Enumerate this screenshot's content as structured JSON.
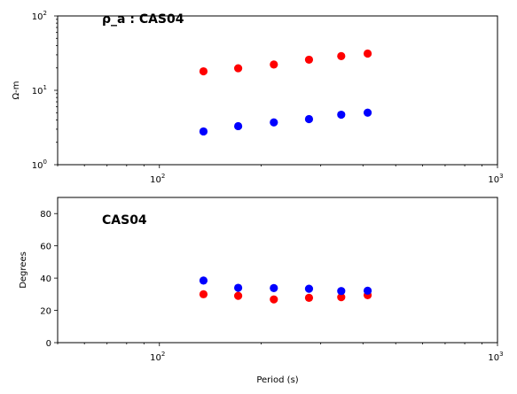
{
  "chart_data": [
    {
      "type": "scatter",
      "title": "ρ_a : CAS04",
      "xlabel": "",
      "ylabel": "Ω-m",
      "xscale": "log",
      "yscale": "log",
      "xlim": [
        50,
        1000
      ],
      "ylim": [
        1,
        100
      ],
      "x_ticks": [
        {
          "value": 100,
          "base": "10",
          "exp": "2"
        },
        {
          "value": 1000,
          "base": "10",
          "exp": "3"
        }
      ],
      "y_ticks": [
        {
          "value": 1,
          "base": "10",
          "exp": "0"
        },
        {
          "value": 10,
          "base": "10",
          "exp": "1"
        },
        {
          "value": 100,
          "base": "10",
          "exp": "2"
        }
      ],
      "grid": false,
      "legend": "none",
      "series": [
        {
          "color": "#ff0000",
          "x": [
            135,
            171,
            218,
            277,
            345,
            413
          ],
          "y": [
            18,
            19.8,
            22.2,
            25.8,
            28.8,
            31.2
          ]
        },
        {
          "color": "#0000ff",
          "x": [
            135,
            171,
            218,
            277,
            345,
            413
          ],
          "y": [
            2.8,
            3.3,
            3.7,
            4.1,
            4.7,
            5.0
          ]
        }
      ]
    },
    {
      "type": "scatter",
      "title": "CAS04",
      "xlabel": "Period (s)",
      "ylabel": "Degrees",
      "xscale": "log",
      "yscale": "linear",
      "xlim": [
        50,
        1000
      ],
      "ylim": [
        0,
        90
      ],
      "x_ticks": [
        {
          "value": 100,
          "base": "10",
          "exp": "2"
        },
        {
          "value": 1000,
          "base": "10",
          "exp": "3"
        }
      ],
      "y_ticks": [
        {
          "value": 0,
          "label": "0"
        },
        {
          "value": 20,
          "label": "20"
        },
        {
          "value": 40,
          "label": "40"
        },
        {
          "value": 60,
          "label": "60"
        },
        {
          "value": 80,
          "label": "80"
        }
      ],
      "grid": false,
      "legend": "none",
      "series": [
        {
          "color": "#ff0000",
          "x": [
            135,
            171,
            218,
            277,
            345,
            413
          ],
          "y": [
            30,
            29,
            26.8,
            27.8,
            28.2,
            29.4
          ]
        },
        {
          "color": "#0000ff",
          "x": [
            135,
            171,
            218,
            277,
            345,
            413
          ],
          "y": [
            38.5,
            34,
            33.8,
            33.4,
            32,
            32.2
          ]
        }
      ]
    }
  ]
}
